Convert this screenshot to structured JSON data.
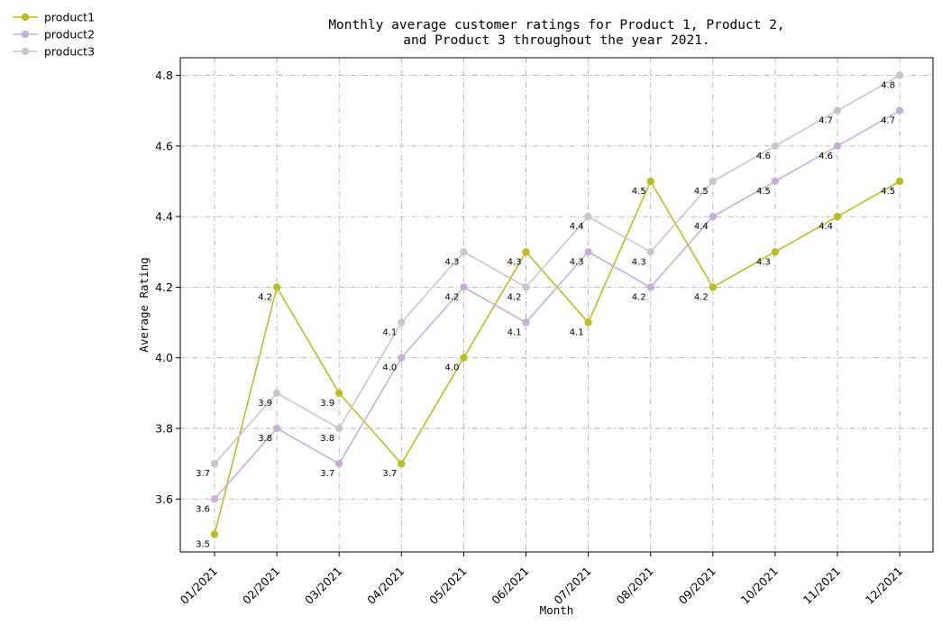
{
  "chart_data": {
    "type": "line",
    "title": "Monthly average customer ratings for Product 1, Product 2,\nand Product 3 throughout the year 2021.",
    "xlabel": "Month",
    "ylabel": "Average Rating",
    "categories": [
      "01/2021",
      "02/2021",
      "03/2021",
      "04/2021",
      "05/2021",
      "06/2021",
      "07/2021",
      "08/2021",
      "09/2021",
      "10/2021",
      "11/2021",
      "12/2021"
    ],
    "ylim": [
      3.45,
      4.85
    ],
    "yticks": [
      3.6,
      3.8,
      4.0,
      4.2,
      4.4,
      4.6,
      4.8
    ],
    "grid": true,
    "legend_position": "outside-top-left",
    "series": [
      {
        "name": "product1",
        "color": "#bcbd22",
        "values": [
          3.5,
          4.2,
          3.9,
          3.7,
          4.0,
          4.3,
          4.1,
          4.5,
          4.2,
          4.3,
          4.4,
          4.5
        ]
      },
      {
        "name": "product2",
        "color": "#c5b0d5",
        "values": [
          3.6,
          3.8,
          3.7,
          4.0,
          4.2,
          4.1,
          4.3,
          4.2,
          4.4,
          4.5,
          4.6,
          4.7
        ]
      },
      {
        "name": "product3",
        "color": "#c7c7c7",
        "values": [
          3.7,
          3.9,
          3.8,
          4.1,
          4.3,
          4.2,
          4.4,
          4.3,
          4.5,
          4.6,
          4.7,
          4.8
        ]
      }
    ]
  }
}
